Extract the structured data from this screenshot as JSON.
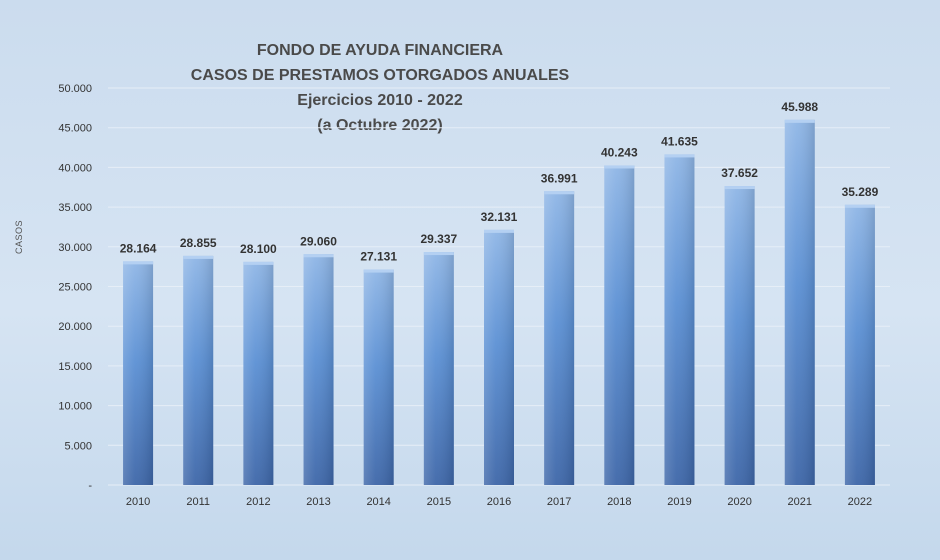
{
  "chart_data": {
    "type": "bar",
    "title_lines": [
      "FONDO DE AYUDA FINANCIERA",
      "CASOS DE PRESTAMOS  OTORGADOS  ANUALES",
      "Ejercicios  2010 - 2022",
      "(a Octubre  2022)"
    ],
    "ylabel": "CASOS",
    "xlabel": "",
    "categories": [
      "2010",
      "2011",
      "2012",
      "2013",
      "2014",
      "2015",
      "2016",
      "2017",
      "2018",
      "2019",
      "2020",
      "2021",
      "2022"
    ],
    "values": [
      28164,
      28855,
      28100,
      29060,
      27131,
      29337,
      32131,
      36991,
      40243,
      41635,
      37652,
      45988,
      35289
    ],
    "value_labels": [
      "28.164",
      "28.855",
      "28.100",
      "29.060",
      "27.131",
      "29.337",
      "32.131",
      "36.991",
      "40.243",
      "41.635",
      "37.652",
      "45.988",
      "35.289"
    ],
    "ylim": [
      0,
      50000
    ],
    "yticks": [
      0,
      5000,
      10000,
      15000,
      20000,
      25000,
      30000,
      35000,
      40000,
      45000,
      50000
    ],
    "ytick_labels": [
      "-",
      "5.000",
      "10.000",
      "15.000",
      "20.000",
      "25.000",
      "30.000",
      "35.000",
      "40.000",
      "45.000",
      "50.000"
    ],
    "grid": true,
    "legend": "none",
    "colors": {
      "bar_top": "#8fb6e6",
      "bar_mid": "#5b90d4",
      "bar_bottom": "#3d66a8",
      "grid": "#e6eef7",
      "text": "#333333"
    }
  }
}
